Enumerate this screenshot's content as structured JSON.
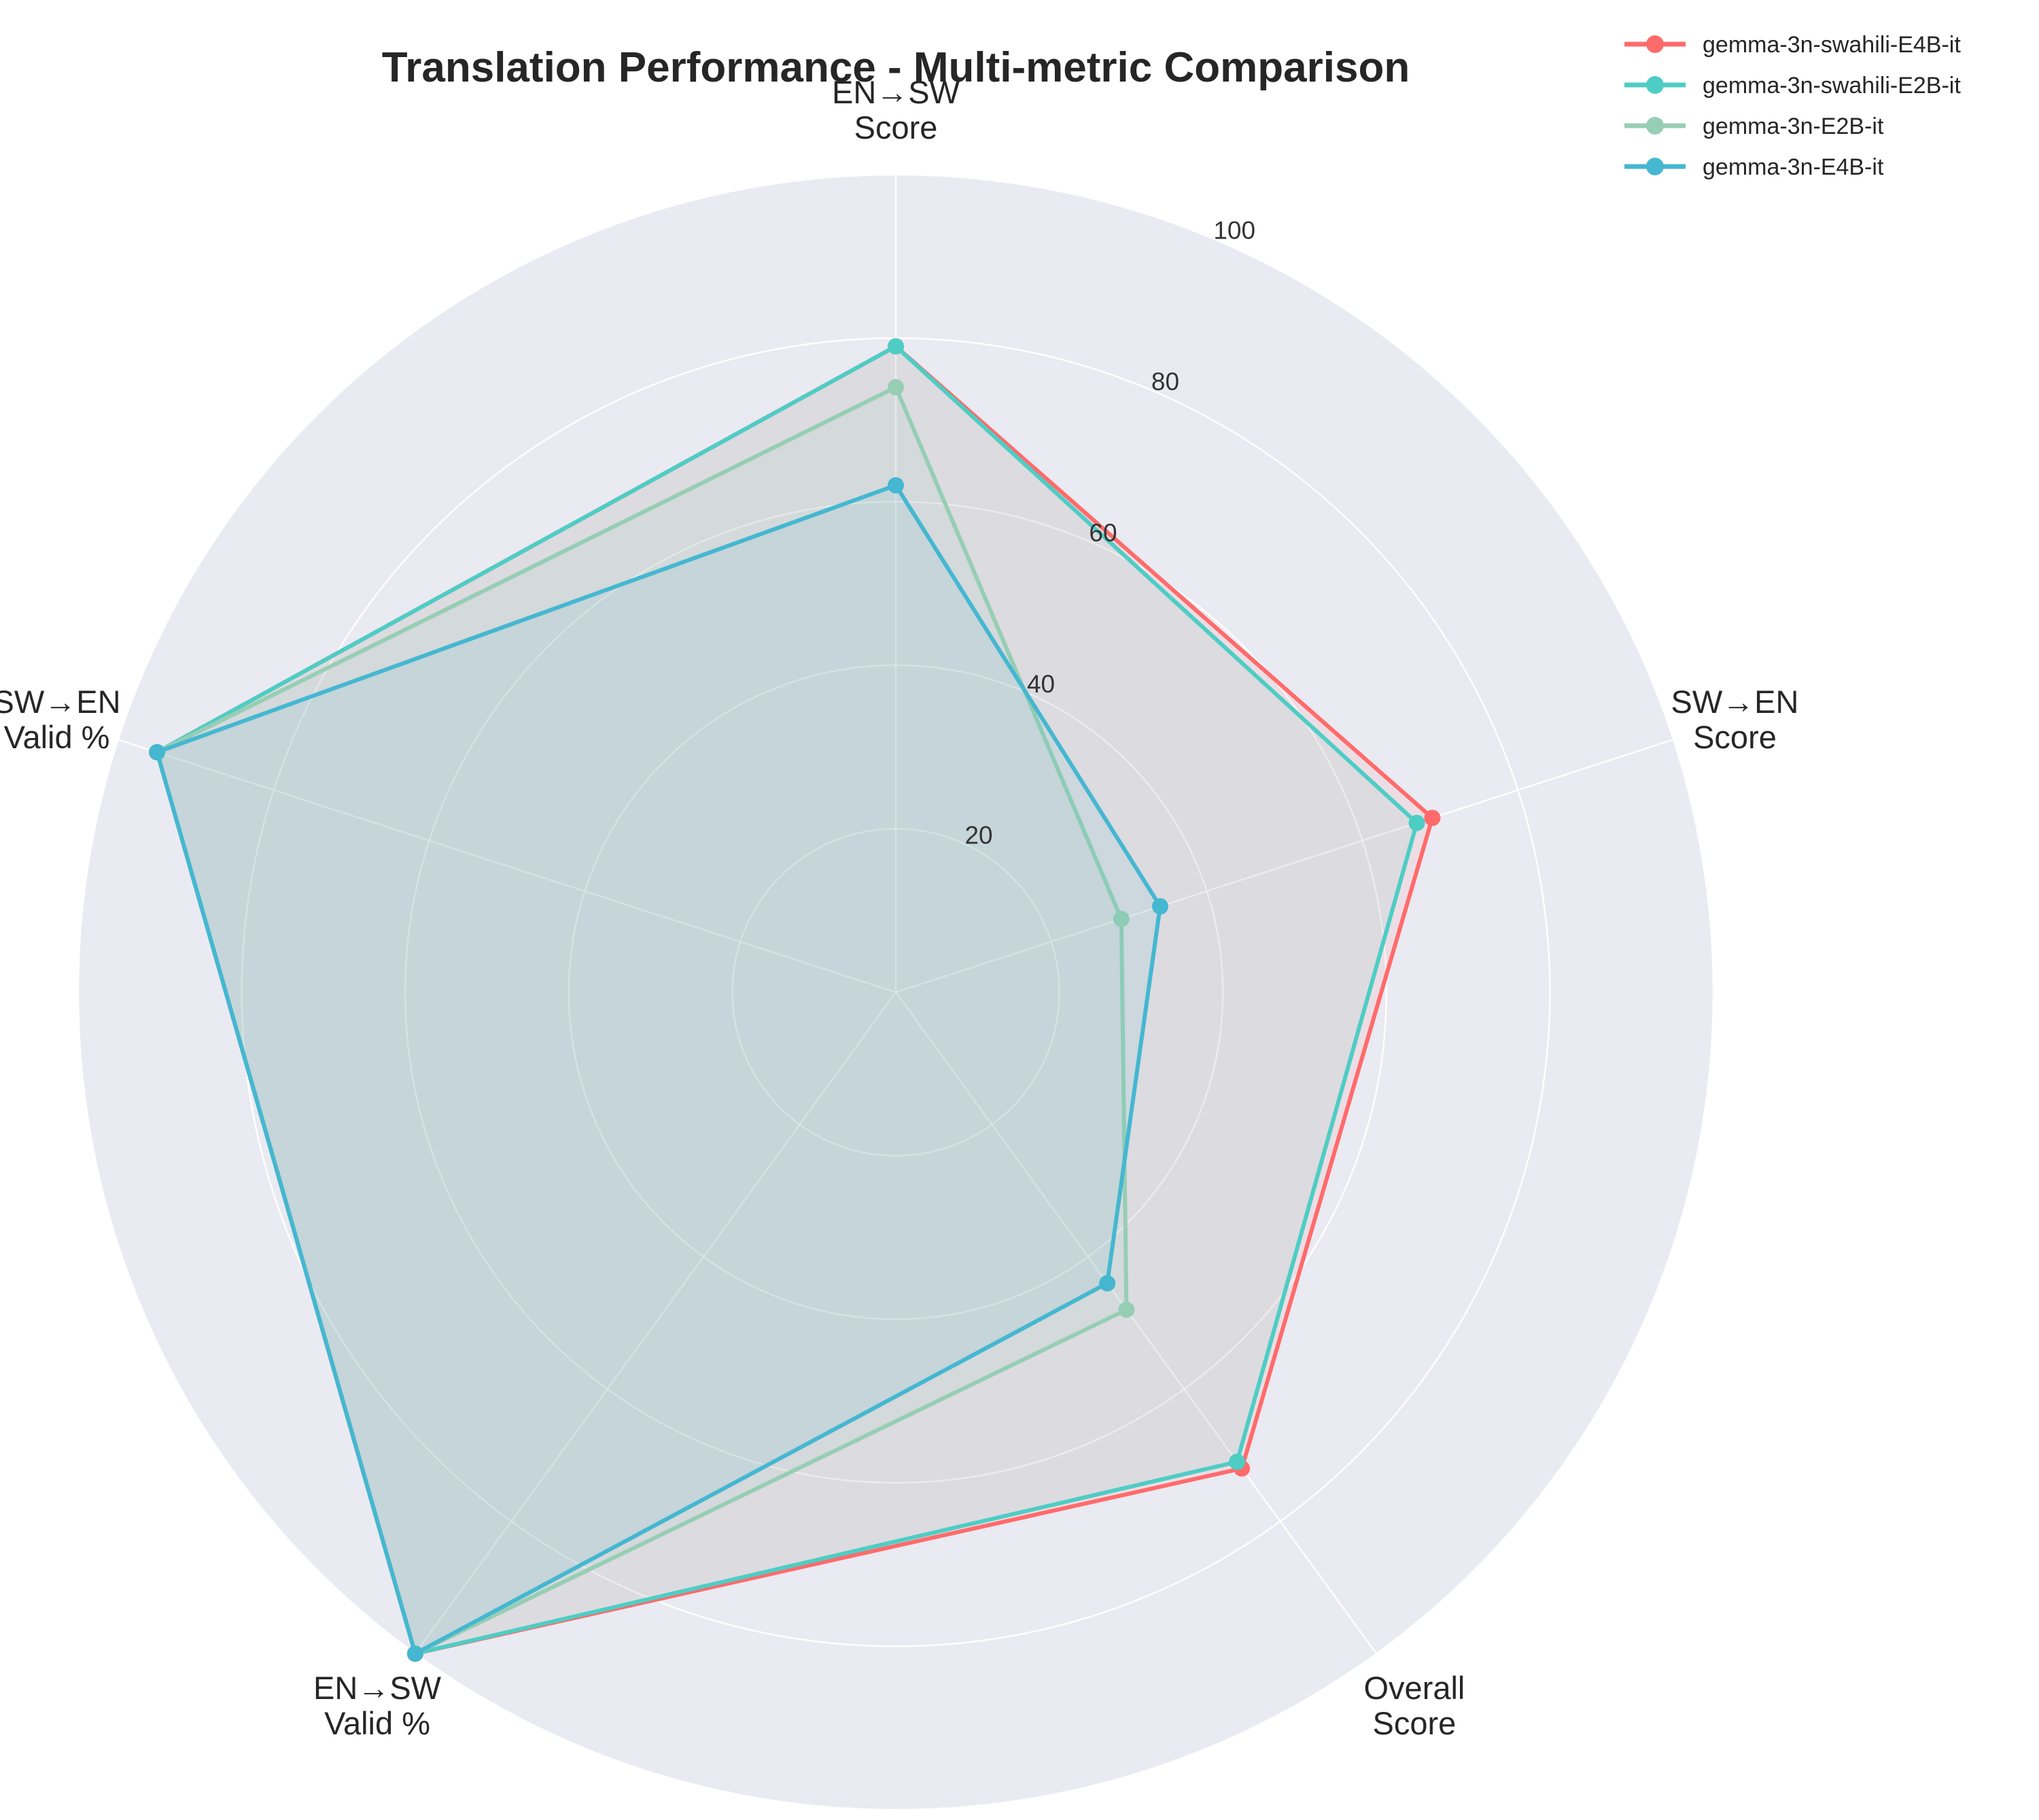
{
  "chart_data": {
    "type": "radar",
    "title": "Translation Performance - Multi-metric Comparison",
    "axes": [
      [
        "EN→SW",
        "Score"
      ],
      [
        "SW→EN",
        "Score"
      ],
      [
        "Overall",
        "Score"
      ],
      [
        "EN→SW",
        "Valid %"
      ],
      [
        "SW→EN",
        "Valid %"
      ]
    ],
    "rlim": [
      0,
      100
    ],
    "rticks": [
      20,
      40,
      60,
      80,
      100
    ],
    "grid": true,
    "legend_position": "top-right",
    "series": [
      {
        "name": "gemma-3n-swahili-E4B-it",
        "color": "#FF6B6B",
        "values": [
          79,
          69,
          72,
          100,
          95
        ]
      },
      {
        "name": "gemma-3n-swahili-E2B-it",
        "color": "#4ECDC4",
        "values": [
          79,
          67,
          71,
          100,
          95
        ]
      },
      {
        "name": "gemma-3n-E2B-it",
        "color": "#96CEB4",
        "values": [
          74,
          29,
          48,
          100,
          95
        ]
      },
      {
        "name": "gemma-3n-E4B-it",
        "color": "#45B7D1",
        "values": [
          62,
          34,
          44,
          100,
          95
        ]
      }
    ]
  }
}
